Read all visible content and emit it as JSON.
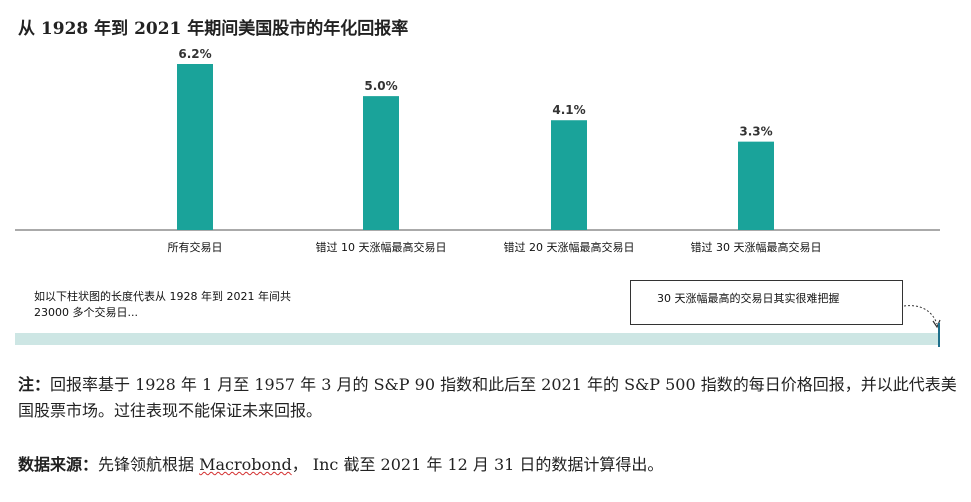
{
  "title": "从 1928 年到 2021 年期间美国股市的年化回报率",
  "chart_data": {
    "type": "bar",
    "categories": [
      "所有交易日",
      "错过 10 天涨幅最高交易日",
      "错过 20 天涨幅最高交易日",
      "错过 30 天涨幅最高交易日"
    ],
    "values": [
      6.2,
      5.0,
      4.1,
      3.3
    ],
    "value_labels": [
      "6.2%",
      "5.0%",
      "4.1%",
      "3.3%"
    ],
    "ylim": [
      0,
      6.2
    ],
    "grid": false,
    "bar_color": "#1aa39a"
  },
  "timeline_note": {
    "line1": "如以下柱状图的长度代表从 1928 年到 2021 年间共",
    "line2": "23000 多个交易日..."
  },
  "callout": "30 天涨幅最高的交易日其实很难把握",
  "footnote": {
    "label": "注：",
    "text": "回报率基于 1928 年 1 月至 1957 年 3 月的 S&P 90 指数和此后至 2021 年的 S&P 500 指数的每日价格回报，并以此代表美国股票市场。过往表现不能保证未来回报。"
  },
  "source": {
    "label": "数据来源：",
    "pre": "先锋领航根据 ",
    "underlined": "Macrobond",
    "post": "， Inc 截至 2021 年 12 月 31 日的数据计算得出。"
  }
}
